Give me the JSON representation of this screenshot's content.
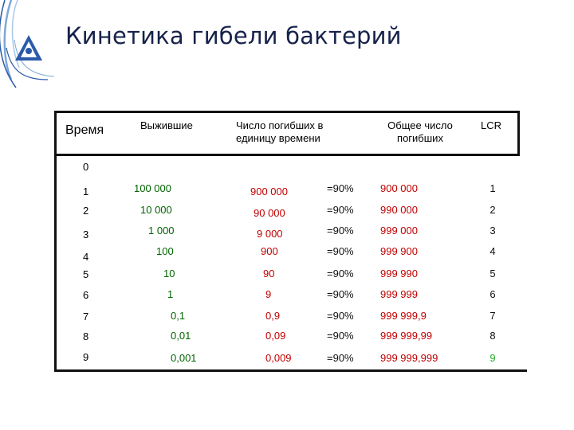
{
  "title": "Кинетика гибели бактерий",
  "headers": {
    "time": "Время",
    "survivors": "Выжившие",
    "killed_per_unit": [
      "Число погибших в",
      "единицу времени"
    ],
    "total_killed": [
      "Общее число",
      "погибших"
    ],
    "lcr": "LCR"
  },
  "rows": [
    {
      "time": "0",
      "survivors": "",
      "killed": "",
      "percent": "",
      "total": "",
      "lcr": ""
    },
    {
      "time": "1",
      "survivors": "100 000",
      "killed": "900 000",
      "percent": "=90%",
      "total": "900 000",
      "lcr": "1"
    },
    {
      "time": "2",
      "survivors": "10 000",
      "killed": "90 000",
      "percent": "=90%",
      "total": "990 000",
      "lcr": "2"
    },
    {
      "time": "3",
      "survivors": "1 000",
      "killed": "9 000",
      "percent": "=90%",
      "total": "999 000",
      "lcr": "3"
    },
    {
      "time": "4",
      "survivors": "100",
      "killed": "900",
      "percent": "=90%",
      "total": "999 900",
      "lcr": "4"
    },
    {
      "time": "5",
      "survivors": "10",
      "killed": "90",
      "percent": "=90%",
      "total": "999 990",
      "lcr": "5"
    },
    {
      "time": "6",
      "survivors": "1",
      "killed": "9",
      "percent": "=90%",
      "total": "999 999",
      "lcr": "6"
    },
    {
      "time": "7",
      "survivors": "0,1",
      "killed": "0,9",
      "percent": "=90%",
      "total": "999 999,9",
      "lcr": "7"
    },
    {
      "time": "8",
      "survivors": "0,01",
      "killed": "0,09",
      "percent": "=90%",
      "total": "999 999,99",
      "lcr": "8"
    },
    {
      "time": "9",
      "survivors": "0,001",
      "killed": "0,009",
      "percent": "=90%",
      "total": "999 999,999",
      "lcr": "9"
    }
  ],
  "colors": {
    "title": "#16224a",
    "survivors": "#006400",
    "killed": "#c00000",
    "total": "#c00000",
    "lcr_last": "#22aa22"
  }
}
